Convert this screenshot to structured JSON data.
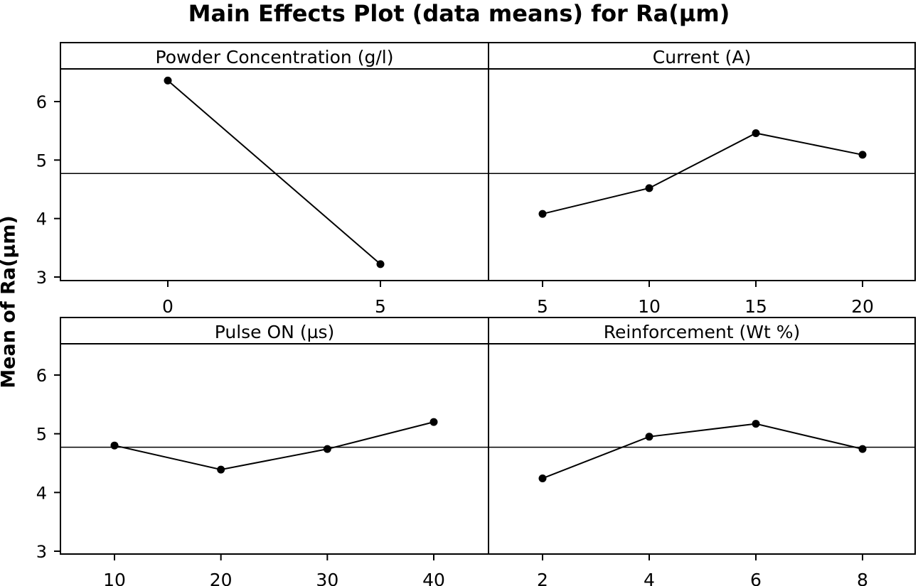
{
  "chart_data": {
    "type": "line",
    "title": "Main Effects Plot (data means) for Ra(µm)",
    "ylabel": "Mean of Ra(µm)",
    "ylim": [
      2.95,
      6.55
    ],
    "yticks": [
      3,
      4,
      5,
      6
    ],
    "grand_mean": 4.77,
    "grid": false,
    "panels": [
      {
        "name": "Powder Concentration (g/l)",
        "x": [
          0,
          5
        ],
        "values": [
          6.36,
          3.22
        ]
      },
      {
        "name": "Current (A)",
        "x": [
          5,
          10,
          15,
          20
        ],
        "values": [
          4.08,
          4.52,
          5.46,
          5.09
        ]
      },
      {
        "name": "Pulse ON (µs)",
        "x": [
          10,
          20,
          30,
          40
        ],
        "values": [
          4.8,
          4.39,
          4.74,
          5.2
        ]
      },
      {
        "name": "Reinforcement (Wt %)",
        "x": [
          2,
          4,
          6,
          8
        ],
        "values": [
          4.24,
          4.95,
          5.17,
          4.74
        ]
      }
    ]
  }
}
